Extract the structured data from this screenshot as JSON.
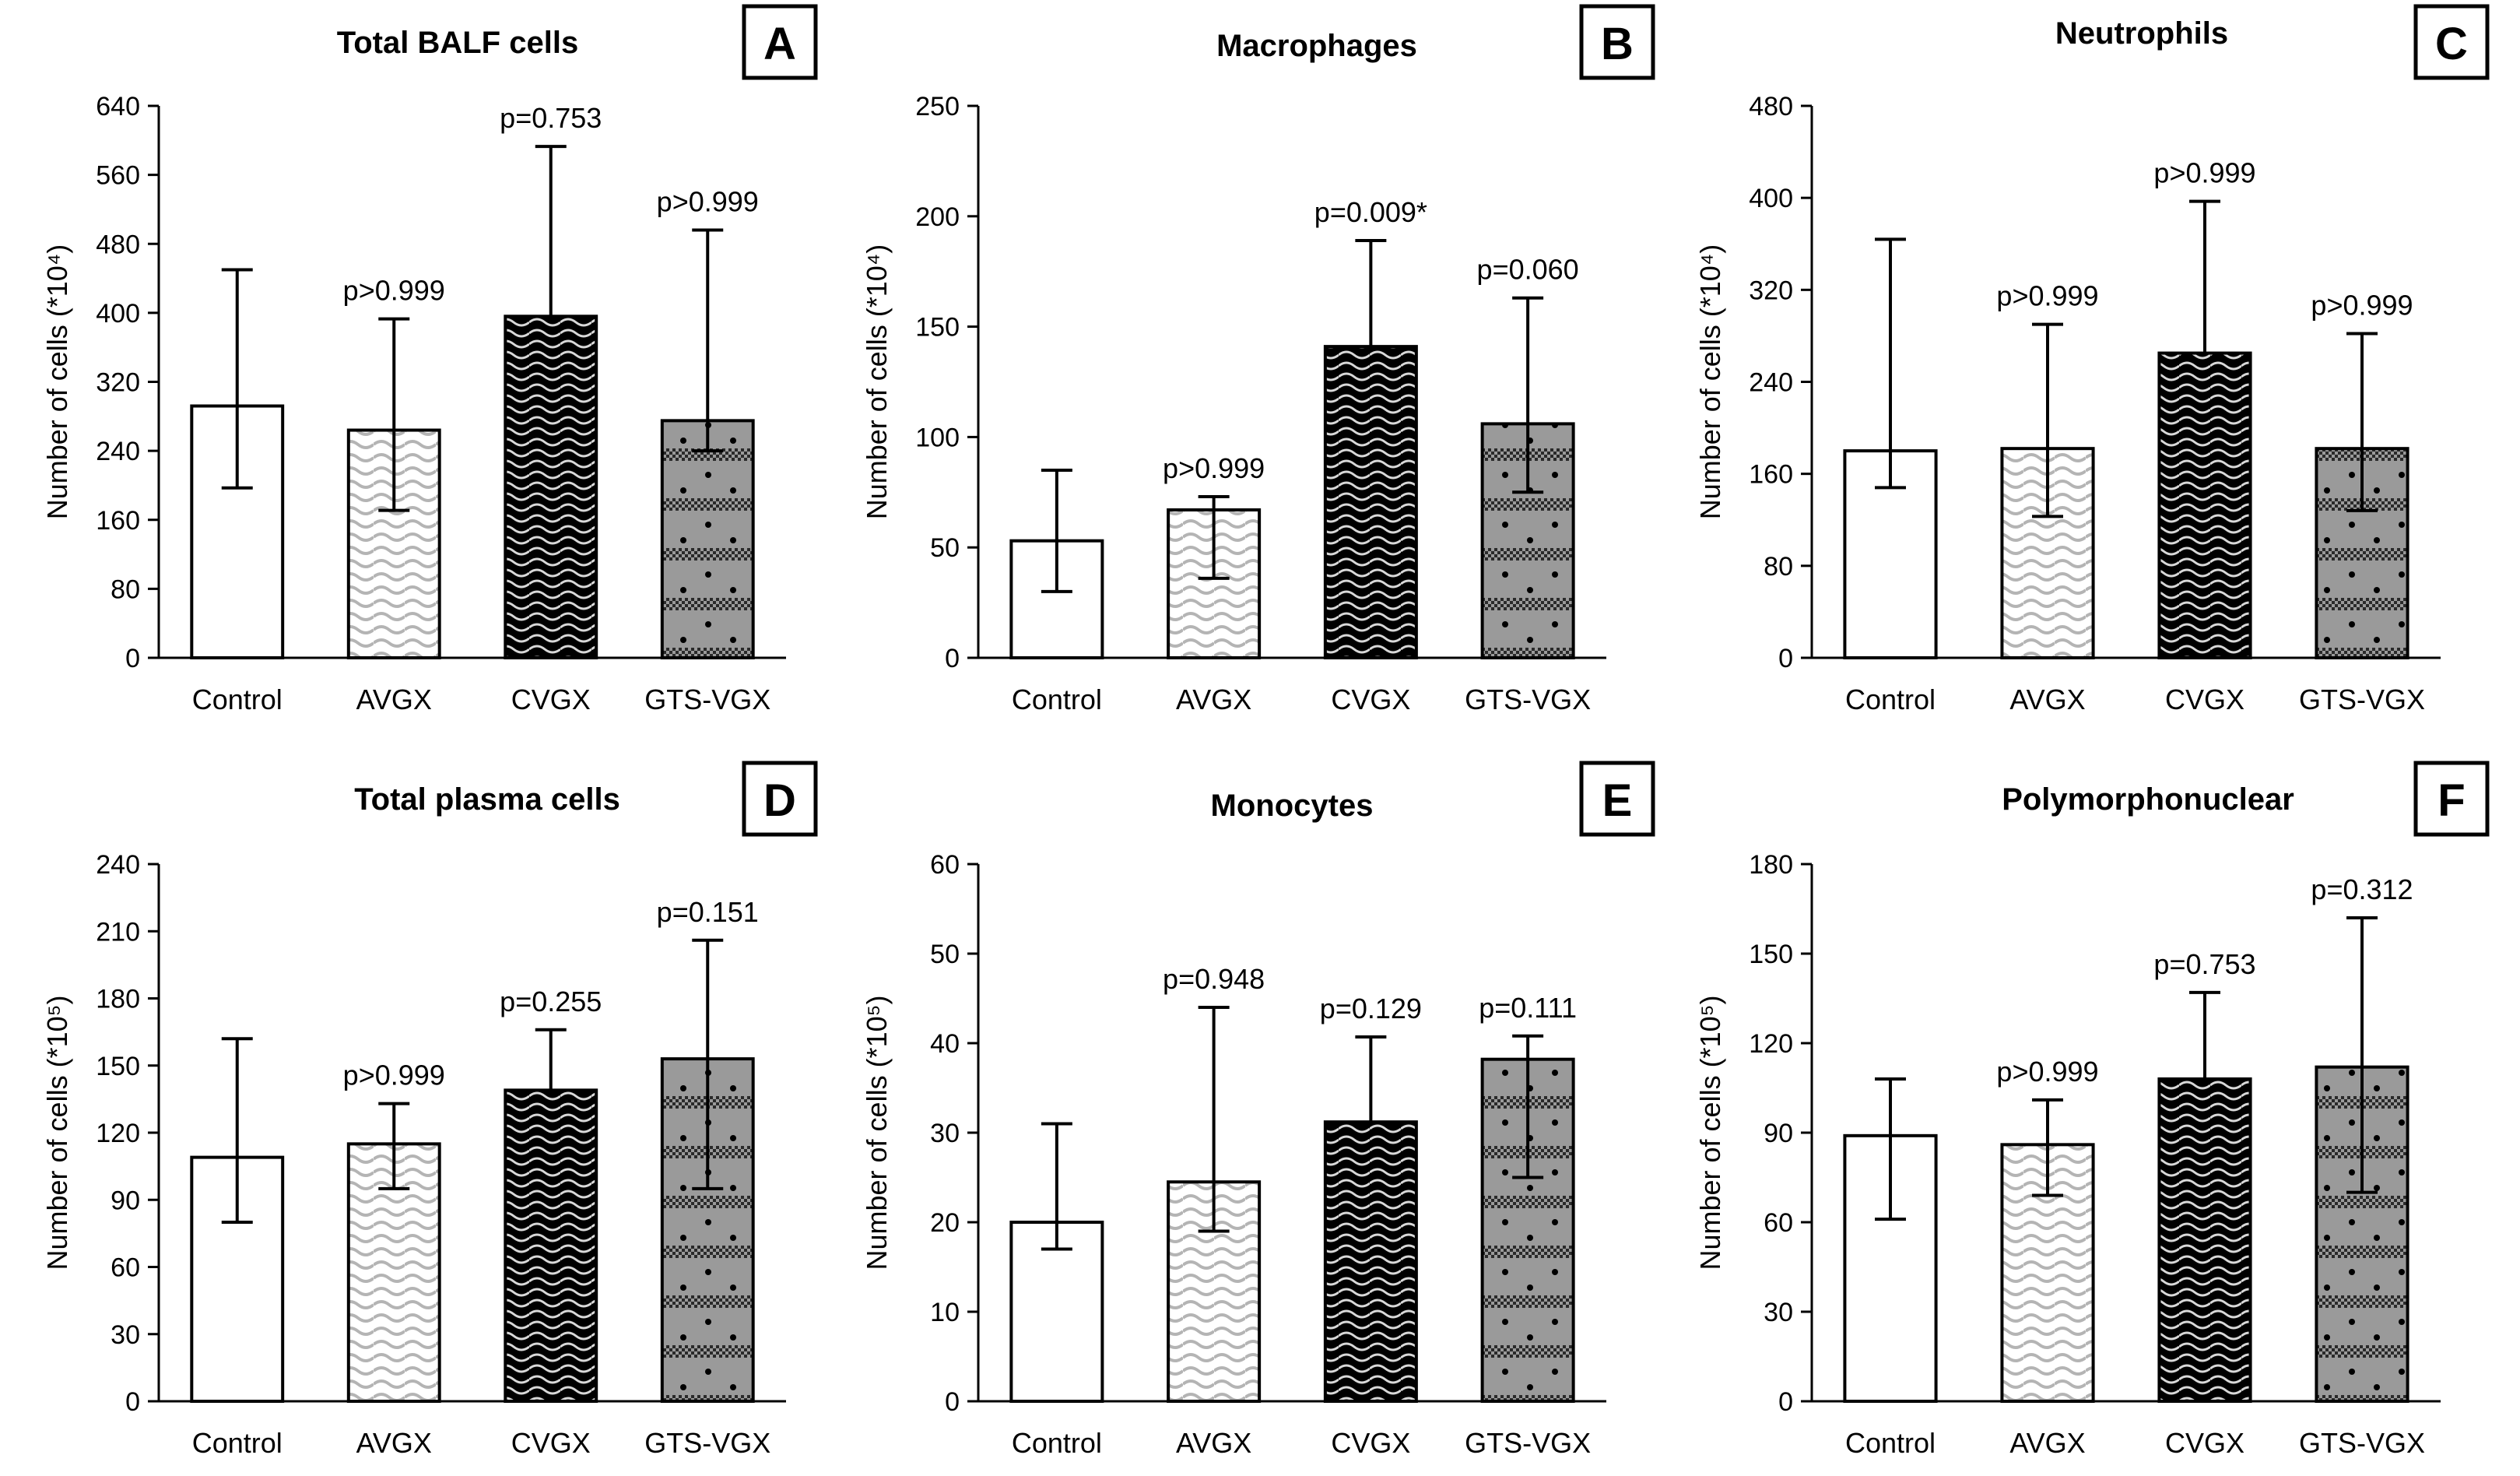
{
  "patterns": {
    "Control": "none",
    "AVGX": "light-wave",
    "CVGX": "dark-wave",
    "GTS-VGX": "checker-dots"
  },
  "colors": {
    "bar_edge": "#000000",
    "background": "#ffffff"
  },
  "chart_data": [
    {
      "panel": "A",
      "type": "bar",
      "title": "Total BALF cells",
      "ylabel": "Number of cells (*10⁴)",
      "ylim": [
        0,
        640
      ],
      "yticks": [
        0,
        80,
        160,
        240,
        320,
        400,
        480,
        560,
        640
      ],
      "categories": [
        "Control",
        "AVGX",
        "CVGX",
        "GTS-VGX"
      ],
      "values": [
        292,
        264,
        396,
        275
      ],
      "error_low": [
        197,
        171,
        null,
        240
      ],
      "error_high": [
        450,
        393,
        593,
        496
      ],
      "pvalues": [
        "",
        "p>0.999",
        "p=0.753",
        "p>0.999"
      ]
    },
    {
      "panel": "B",
      "type": "bar",
      "title": "Macrophages",
      "ylabel": "Number of cells (*10⁴)",
      "ylim": [
        0,
        250
      ],
      "yticks": [
        0,
        50,
        100,
        150,
        200,
        250
      ],
      "categories": [
        "Control",
        "AVGX",
        "CVGX",
        "GTS-VGX"
      ],
      "values": [
        53,
        67,
        141,
        106
      ],
      "error_low": [
        30,
        36,
        null,
        75
      ],
      "error_high": [
        85,
        73,
        189,
        163
      ],
      "pvalues": [
        "",
        "p>0.999",
        "p=0.009*",
        "p=0.060"
      ]
    },
    {
      "panel": "C",
      "type": "bar",
      "title": "Neutrophils",
      "ylabel": "Number of cells (*10⁴)",
      "ylim": [
        0,
        480
      ],
      "yticks": [
        0,
        80,
        160,
        240,
        320,
        400,
        480
      ],
      "categories": [
        "Control",
        "AVGX",
        "CVGX",
        "GTS-VGX"
      ],
      "values": [
        180,
        182,
        265,
        182
      ],
      "error_low": [
        148,
        123,
        null,
        128
      ],
      "error_high": [
        364,
        290,
        397,
        282
      ],
      "pvalues": [
        "",
        "p>0.999",
        "p>0.999",
        "p>0.999"
      ]
    },
    {
      "panel": "D",
      "type": "bar",
      "title": "Total plasma cells",
      "ylabel": "Number of cells (*10⁵)",
      "ylim": [
        0,
        240
      ],
      "yticks": [
        0,
        30,
        60,
        90,
        120,
        150,
        180,
        210,
        240
      ],
      "categories": [
        "Control",
        "AVGX",
        "CVGX",
        "GTS-VGX"
      ],
      "values": [
        109,
        115,
        139,
        153
      ],
      "error_low": [
        80,
        95,
        null,
        95
      ],
      "error_high": [
        162,
        133,
        166,
        206
      ],
      "pvalues": [
        "",
        "p>0.999",
        "p=0.255",
        "p=0.151"
      ]
    },
    {
      "panel": "E",
      "type": "bar",
      "title": "Monocytes",
      "ylabel": "Number of cells (*10⁵)",
      "ylim": [
        0,
        60
      ],
      "yticks": [
        0,
        10,
        20,
        30,
        40,
        50,
        60
      ],
      "categories": [
        "Control",
        "AVGX",
        "CVGX",
        "GTS-VGX"
      ],
      "values": [
        20,
        24.5,
        31.2,
        38.2
      ],
      "error_low": [
        17,
        19,
        null,
        25
      ],
      "error_high": [
        31,
        44,
        40.7,
        40.8
      ],
      "pvalues": [
        "",
        "p=0.948",
        "p=0.129",
        "p=0.111"
      ]
    },
    {
      "panel": "F",
      "type": "bar",
      "title": "Polymorphonuclear",
      "ylabel": "Number of cells (*10⁵)",
      "ylim": [
        0,
        180
      ],
      "yticks": [
        0,
        30,
        60,
        90,
        120,
        150,
        180
      ],
      "categories": [
        "Control",
        "AVGX",
        "CVGX",
        "GTS-VGX"
      ],
      "values": [
        89,
        86,
        108,
        112
      ],
      "error_low": [
        61,
        69,
        null,
        70
      ],
      "error_high": [
        108,
        101,
        137,
        162
      ],
      "pvalues": [
        "",
        "p>0.999",
        "p=0.753",
        "p=0.312"
      ]
    }
  ]
}
